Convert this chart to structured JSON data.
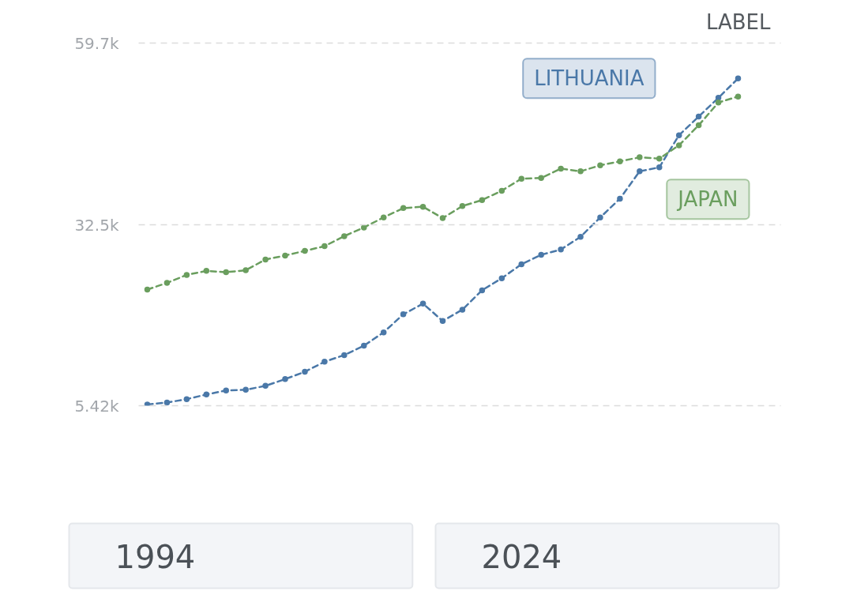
{
  "chart_data": {
    "type": "line",
    "categories": [
      null,
      null,
      null,
      null,
      null,
      null,
      null,
      null,
      null,
      null,
      null,
      null,
      null,
      null,
      null,
      null,
      null,
      null,
      null,
      null,
      null,
      null,
      null,
      null,
      null,
      null,
      null,
      null,
      null,
      null,
      null
    ],
    "series": [
      {
        "name": "LITHUANIA",
        "color": "#4a78a8",
        "values": [
          5600,
          5900,
          6400,
          7100,
          7700,
          7800,
          8400,
          9400,
          10500,
          12000,
          13000,
          14400,
          16400,
          19100,
          20700,
          18100,
          19800,
          22700,
          24500,
          26600,
          28000,
          28800,
          30700,
          33600,
          36400,
          40500,
          41100,
          45900,
          48700,
          51500,
          54400
        ]
      },
      {
        "name": "JAPAN",
        "color": "#6a9e5e",
        "values": [
          22800,
          23800,
          25000,
          25600,
          25400,
          25700,
          27300,
          27900,
          28600,
          29300,
          30800,
          32100,
          33600,
          35000,
          35200,
          33500,
          35300,
          36200,
          37600,
          39400,
          39500,
          40900,
          40500,
          41400,
          42000,
          42600,
          42400,
          44400,
          47400,
          50800,
          51700
        ]
      }
    ],
    "ylim": [
      5420,
      59700
    ],
    "yticks": [
      {
        "value": 5420,
        "label": "5.42k"
      },
      {
        "value": 32500,
        "label": "32.5k"
      },
      {
        "value": 59700,
        "label": "59.7k"
      }
    ],
    "grid": "y",
    "marker": "circle",
    "line_style": "dashed",
    "tick_labels": "y",
    "annotations": [
      "LABEL",
      "1994",
      "2024"
    ]
  }
}
